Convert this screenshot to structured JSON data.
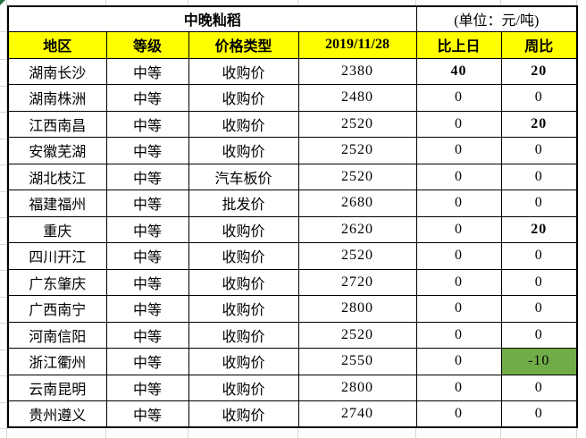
{
  "title": "中晚籼稻",
  "unit_label": "(单位：元/吨)",
  "table": {
    "columns": [
      "地区",
      "等级",
      "价格类型",
      "2019/11/28",
      "比上日",
      "周比"
    ],
    "rows": [
      {
        "region": "湖南长沙",
        "grade": "中等",
        "price_type": "收购价",
        "price": "2380",
        "day_change": "40",
        "day_change_highlight": "red",
        "week_change": "20",
        "week_change_highlight": "red"
      },
      {
        "region": "湖南株洲",
        "grade": "中等",
        "price_type": "收购价",
        "price": "2480",
        "day_change": "0",
        "day_change_highlight": "none",
        "week_change": "0",
        "week_change_highlight": "none"
      },
      {
        "region": "江西南昌",
        "grade": "中等",
        "price_type": "收购价",
        "price": "2520",
        "day_change": "0",
        "day_change_highlight": "none",
        "week_change": "20",
        "week_change_highlight": "red"
      },
      {
        "region": "安徽芜湖",
        "grade": "中等",
        "price_type": "收购价",
        "price": "2520",
        "day_change": "0",
        "day_change_highlight": "none",
        "week_change": "0",
        "week_change_highlight": "none"
      },
      {
        "region": "湖北枝江",
        "grade": "中等",
        "price_type": "汽车板价",
        "price": "2520",
        "day_change": "0",
        "day_change_highlight": "none",
        "week_change": "0",
        "week_change_highlight": "none"
      },
      {
        "region": "福建福州",
        "grade": "中等",
        "price_type": "批发价",
        "price": "2680",
        "day_change": "0",
        "day_change_highlight": "none",
        "week_change": "0",
        "week_change_highlight": "none"
      },
      {
        "region": "重庆",
        "grade": "中等",
        "price_type": "收购价",
        "price": "2620",
        "day_change": "0",
        "day_change_highlight": "none",
        "week_change": "20",
        "week_change_highlight": "red"
      },
      {
        "region": "四川开江",
        "grade": "中等",
        "price_type": "收购价",
        "price": "2520",
        "day_change": "0",
        "day_change_highlight": "none",
        "week_change": "0",
        "week_change_highlight": "none"
      },
      {
        "region": "广东肇庆",
        "grade": "中等",
        "price_type": "收购价",
        "price": "2720",
        "day_change": "0",
        "day_change_highlight": "none",
        "week_change": "0",
        "week_change_highlight": "none"
      },
      {
        "region": "广西南宁",
        "grade": "中等",
        "price_type": "收购价",
        "price": "2800",
        "day_change": "0",
        "day_change_highlight": "none",
        "week_change": "0",
        "week_change_highlight": "none"
      },
      {
        "region": "河南信阳",
        "grade": "中等",
        "price_type": "收购价",
        "price": "2520",
        "day_change": "0",
        "day_change_highlight": "none",
        "week_change": "0",
        "week_change_highlight": "none"
      },
      {
        "region": "浙江衢州",
        "grade": "中等",
        "price_type": "收购价",
        "price": "2550",
        "day_change": "0",
        "day_change_highlight": "none",
        "week_change": "-10",
        "week_change_highlight": "green-bg"
      },
      {
        "region": "云南昆明",
        "grade": "中等",
        "price_type": "收购价",
        "price": "2800",
        "day_change": "0",
        "day_change_highlight": "none",
        "week_change": "0",
        "week_change_highlight": "none"
      },
      {
        "region": "贵州遵义",
        "grade": "中等",
        "price_type": "收购价",
        "price": "2740",
        "day_change": "0",
        "day_change_highlight": "none",
        "week_change": "0",
        "week_change_highlight": "none"
      }
    ]
  },
  "colors": {
    "header_bg": "#ffff00",
    "positive_change_text": "#ff0000",
    "negative_change_bg": "#70ad47",
    "table_border": "#000000",
    "gridline": "#d6d6d6",
    "error_triangle": "#217346"
  }
}
